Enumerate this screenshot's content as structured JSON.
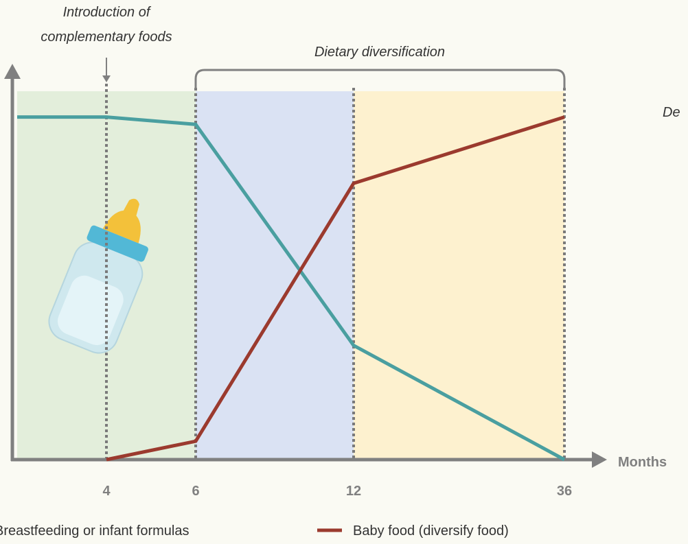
{
  "chart_data": {
    "type": "line",
    "annotations": [
      "Introduction of",
      "complementary foods",
      "Dietary diversification",
      "De"
    ],
    "xlabel": "Months",
    "categories": [
      null,
      "4",
      "6",
      "12",
      "36"
    ],
    "series": [
      {
        "name": "Breastfeeding or infant formulas",
        "color": "#4a9fa0",
        "values": [
          93,
          93,
          91,
          31,
          0
        ]
      },
      {
        "name": "Baby food (diversify food)",
        "color": "#9b3a2e",
        "values": [
          null,
          0,
          5,
          75,
          93
        ]
      }
    ],
    "ylim": [
      0,
      100
    ]
  }
}
